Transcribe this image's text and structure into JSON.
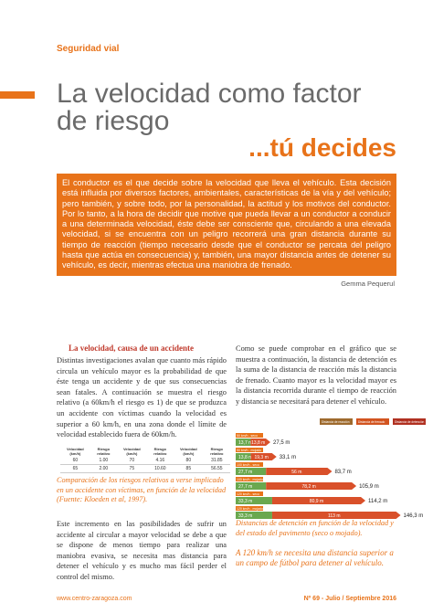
{
  "header": {
    "section": "Seguridad vial",
    "title_lines": [
      "La velocidad como factor",
      "de riesgo"
    ],
    "tagline": "...tú decides"
  },
  "intro": "El conductor es el que decide sobre la velocidad que lleva el vehículo. Esta decisión está influida por diversos factores, ambientales, características de la vía y del vehículo; pero también, y sobre todo, por la personalidad, la actitud y los motivos del conductor. Por lo tanto, a la hora de decidir que motive que pueda llevar a un conductor a conducir a una determinada velocidad, éste debe ser consciente que, circulando a una elevada velocidad, si se encuentra con un peligro recorrerá una gran distancia durante su tiempo de reacción (tiempo necesario desde que el conductor se percata del peligro hasta que actúa en consecuencia) y, también, una mayor distancia antes de detener su vehículo, es decir, mientras efectua una maniobra de frenado.",
  "author": "Gemma Pequerul",
  "left": {
    "heading": "La velocidad, causa de un accidente",
    "paragraph1": "Distintas investigaciones avalan que cuanto más rápido circula un vehículo mayor es la probabilidad de que éste tenga un accidente y de que sus consecuencias sean fatales. A continuación se muestra el riesgo relativo (a 60km/h el riesgo es 1) de que se produzca un accidente con víctimas cuando la velocidad es superior a 60 km/h, en una zona donde el límite de velocidad establecido fuera de 60km/h.",
    "tables": [
      {
        "headers": [
          "Velocidad (km/h)",
          "Riesgo relativo"
        ],
        "rows": [
          [
            "60",
            "1.00"
          ],
          [
            "65",
            "2.00"
          ]
        ]
      },
      {
        "headers": [
          "Velocidad (km/h)",
          "Riesgo relativo"
        ],
        "rows": [
          [
            "70",
            "4.16"
          ],
          [
            "75",
            "10.60"
          ]
        ]
      },
      {
        "headers": [
          "Velocidad (km/h)",
          "Riesgo relativo"
        ],
        "rows": [
          [
            "80",
            "31.85"
          ],
          [
            "85",
            "56.55"
          ]
        ]
      }
    ],
    "caption": "Comparación de los riesgos relativos a verse implicado en un accidente con víctimas, en función de la velocidad (Fuente: Kloeden et al, 1997).",
    "paragraph2": "Este incremento en las posibilidades de sufrir un accidente al circular a mayor velocidad se debe a que se dispone de menos tiempo para realizar una maniobra evasiva, se necesita mas distancia para detener el vehículo y es mucho mas fácil perder el control del mismo."
  },
  "right": {
    "paragraph": "Como se puede comprobar en el gráfico que se muestra a continuación, la distancia de detención es la suma de la distancia de reacción más la distancia de frenado. Cuanto mayor es la velocidad mayor es la distancia recorrida durante el tiempo de reacción y distancia se necesitará para detener el vehículo.",
    "figure": {
      "legend": [
        "Distancia de reacción",
        "Distancia de frenado",
        "Distancia de detención"
      ],
      "rows": [
        {
          "label": "50 km/h - seco",
          "reaction": "13,7 m",
          "braking": "13,8 m",
          "total": "27,5 m"
        },
        {
          "label": "50 km/h - mojado",
          "reaction": "13,8 m",
          "braking": "19,3 m",
          "total": "33,1 m"
        },
        {
          "label": "100 km/h - seco",
          "reaction": "27,7 m",
          "braking": "56 m",
          "total": "83,7 m"
        },
        {
          "label": "100 km/h - mojado",
          "reaction": "27,7 m",
          "braking": "78,2 m",
          "total": "105,9 m"
        },
        {
          "label": "120 km/h - seco",
          "reaction": "33,3 m",
          "braking": "80,9 m",
          "total": "114,2 m"
        },
        {
          "label": "120 km/h - mojado",
          "reaction": "33,3 m",
          "braking": "113 m",
          "total": "146,3 m"
        }
      ]
    },
    "caption": "Distancias de detención en función de la velocidad y del estado del pavimento (seco o mojado).",
    "callout": "A 120 km/h se necesita una distancia superior a un campo de fútbol para detener al vehículo."
  },
  "footer": {
    "website": "www.centro-zaragoza.com",
    "issue": "Nº 69 - Julio / Septiembre 2016"
  }
}
